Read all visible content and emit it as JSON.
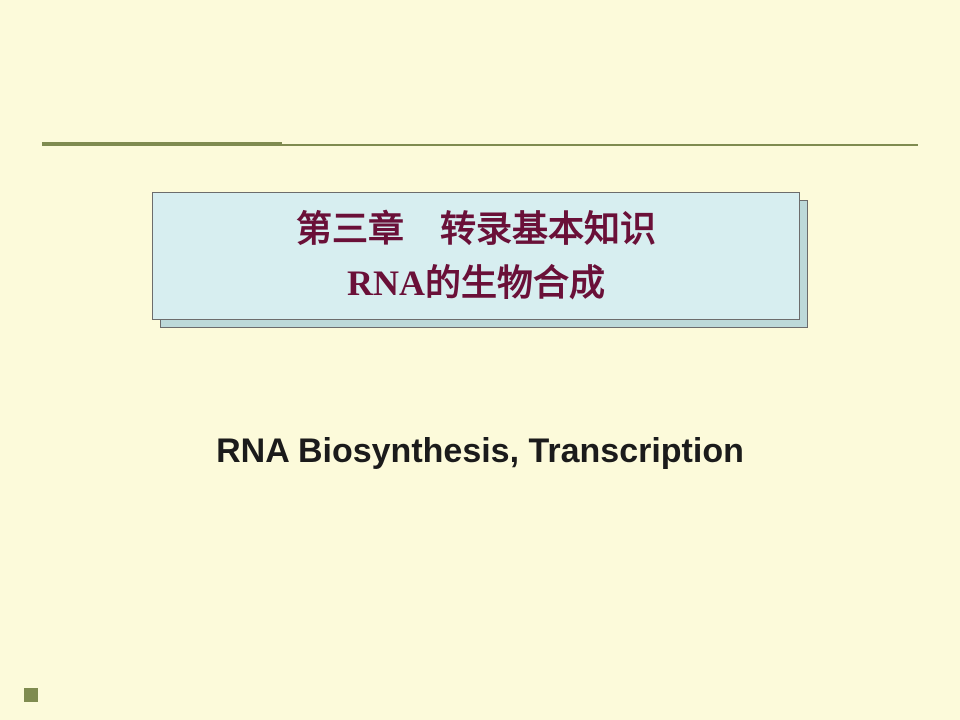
{
  "slide": {
    "background_color": "#fcfada",
    "accent_color": "#7f8b50",
    "title_box": {
      "fill": "#d7eef0",
      "shadow_fill": "#bdd9d9",
      "border_color": "#6c6c6c",
      "line1": "第三章　转录基本知识",
      "line2_latin": "RNA",
      "line2_cjk": "的生物合成",
      "text_color": "#6a1038",
      "font_size_pt": 27
    },
    "subtitle": {
      "text": "RNA Biosynthesis, Transcription",
      "color": "#1b1b1b",
      "font_size_pt": 25
    }
  }
}
